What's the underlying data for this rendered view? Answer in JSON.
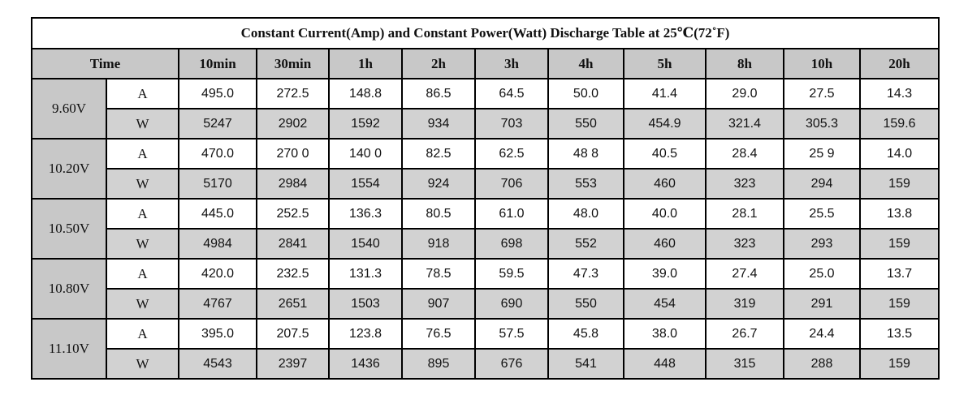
{
  "title": "Constant Current(Amp) and Constant Power(Watt) Discharge Table at 25℃(72˚F)",
  "time_label": "Time",
  "durations": [
    "10min",
    "30min",
    "1h",
    "2h",
    "3h",
    "4h",
    "5h",
    "8h",
    "10h",
    "20h"
  ],
  "groups": [
    {
      "voltage": "9.60V",
      "rows": [
        {
          "unit": "A",
          "values": [
            "495.0",
            "272.5",
            "148.8",
            "86.5",
            "64.5",
            "50.0",
            "41.4",
            "29.0",
            "27.5",
            "14.3"
          ]
        },
        {
          "unit": "W",
          "values": [
            "5247",
            "2902",
            "1592",
            "934",
            "703",
            "550",
            "454.9",
            "321.4",
            "305.3",
            "159.6"
          ]
        }
      ]
    },
    {
      "voltage": "10.20V",
      "rows": [
        {
          "unit": "A",
          "values": [
            "470.0",
            "270 0",
            "140 0",
            "82.5",
            "62.5",
            "48 8",
            "40.5",
            "28.4",
            "25 9",
            "14.0"
          ]
        },
        {
          "unit": "W",
          "values": [
            "5170",
            "2984",
            "1554",
            "924",
            "706",
            "553",
            "460",
            "323",
            "294",
            "159"
          ]
        }
      ]
    },
    {
      "voltage": "10.50V",
      "rows": [
        {
          "unit": "A",
          "values": [
            "445.0",
            "252.5",
            "136.3",
            "80.5",
            "61.0",
            "48.0",
            "40.0",
            "28.1",
            "25.5",
            "13.8"
          ]
        },
        {
          "unit": "W",
          "values": [
            "4984",
            "2841",
            "1540",
            "918",
            "698",
            "552",
            "460",
            "323",
            "293",
            "159"
          ]
        }
      ]
    },
    {
      "voltage": "10.80V",
      "rows": [
        {
          "unit": "A",
          "values": [
            "420.0",
            "232.5",
            "131.3",
            "78.5",
            "59.5",
            "47.3",
            "39.0",
            "27.4",
            "25.0",
            "13.7"
          ]
        },
        {
          "unit": "W",
          "values": [
            "4767",
            "2651",
            "1503",
            "907",
            "690",
            "550",
            "454",
            "319",
            "291",
            "159"
          ]
        }
      ]
    },
    {
      "voltage": "11.10V",
      "rows": [
        {
          "unit": "A",
          "values": [
            "395.0",
            "207.5",
            "123.8",
            "76.5",
            "57.5",
            "45.8",
            "38.0",
            "26.7",
            "24.4",
            "13.5"
          ]
        },
        {
          "unit": "W",
          "values": [
            "4543",
            "2397",
            "1436",
            "895",
            "676",
            "541",
            "448",
            "315",
            "288",
            "159"
          ]
        }
      ]
    }
  ]
}
